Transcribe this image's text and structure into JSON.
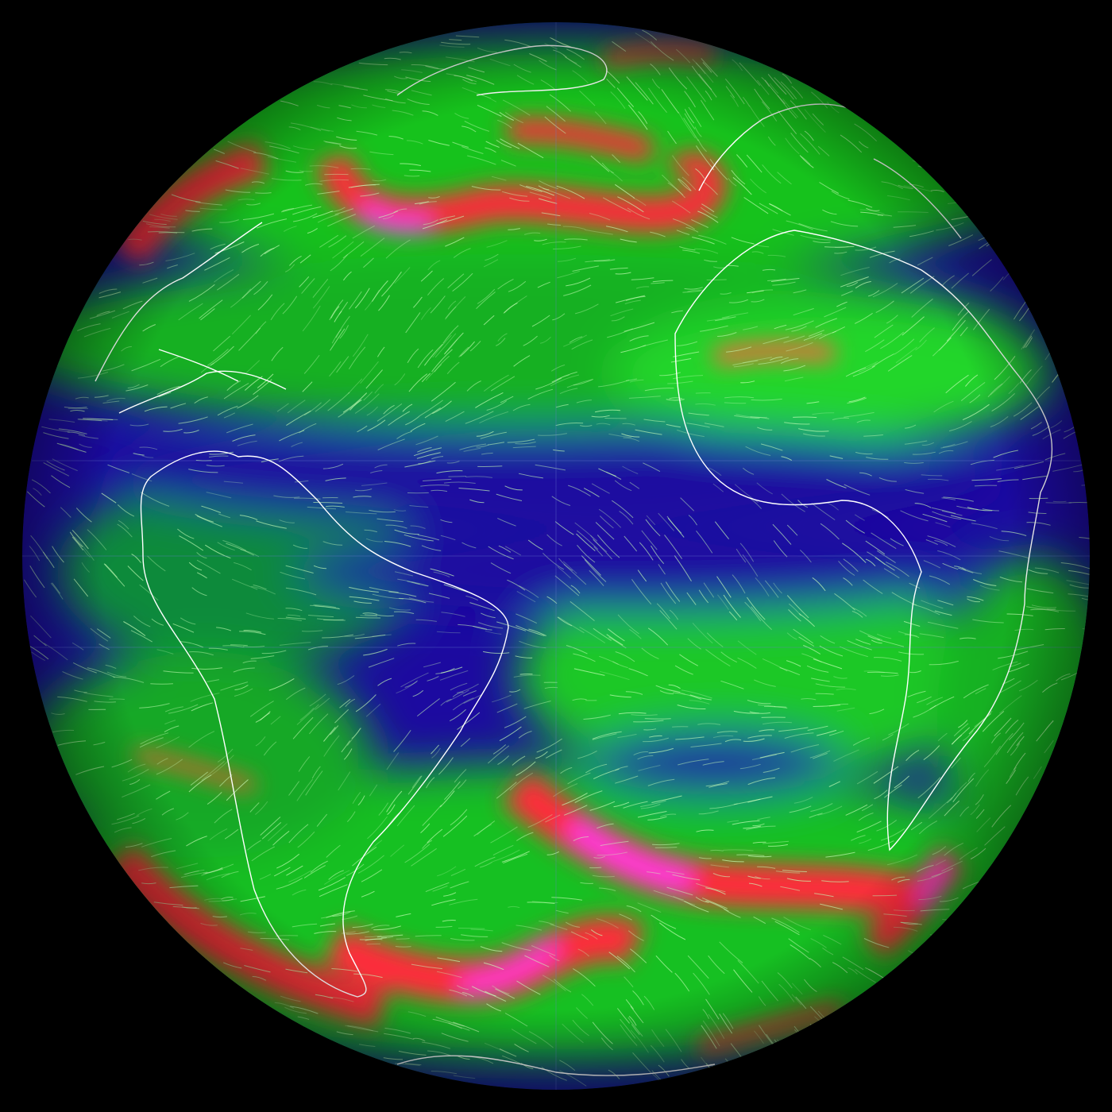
{
  "map": {
    "projection": "orthographic",
    "layer": "wind",
    "background_color": "#000000",
    "palette": {
      "calm": "#1c0aa0",
      "light": "#0e8f3a",
      "moderate": "#17d11f",
      "strong": "#ff2a3a",
      "extreme": "#ff3cf0"
    },
    "streamline_color": "#c8ffb8",
    "coastline_color": "#ffffff",
    "graticule_color": "#6a7ad0"
  }
}
